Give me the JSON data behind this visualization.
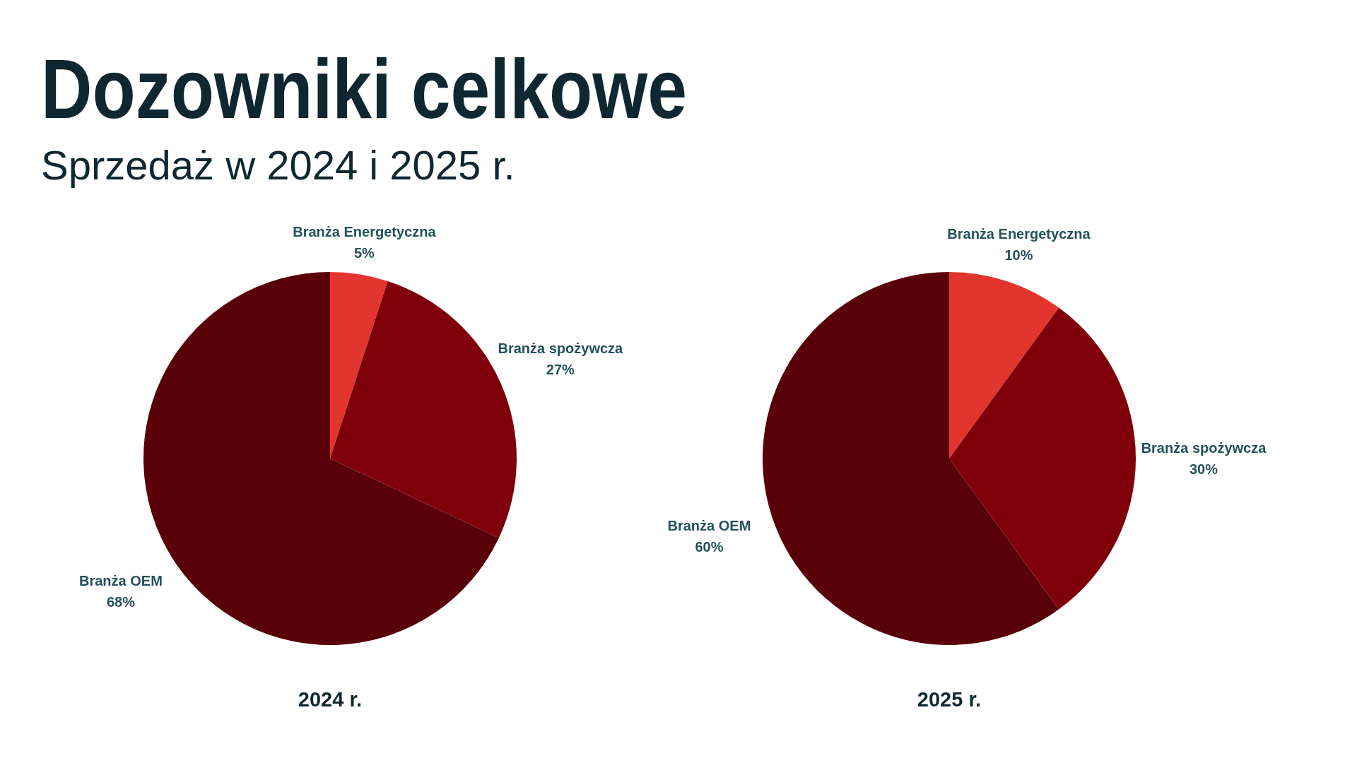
{
  "chart_data": [
    {
      "type": "pie",
      "title": "Dozowniki celkowe",
      "subtitle": "Sprzedaż w 2024 i 2025 r.",
      "xlabel": "2024 r.",
      "categories": [
        "Branża Energetyczna",
        "Branża spożywcza",
        "Branża OEM"
      ],
      "values": [
        5,
        27,
        68
      ],
      "value_labels": [
        "5%",
        "27%",
        "68%"
      ],
      "colors": [
        "#e2352d",
        "#7f000b",
        "#5a0008"
      ]
    },
    {
      "type": "pie",
      "xlabel": "2025 r.",
      "categories": [
        "Branża Energetyczna",
        "Branża spożywcza",
        "Branża OEM"
      ],
      "values": [
        10,
        30,
        60
      ],
      "value_labels": [
        "10%",
        "30%",
        "60%"
      ],
      "colors": [
        "#e2352d",
        "#7f000b",
        "#5a0008"
      ]
    }
  ]
}
